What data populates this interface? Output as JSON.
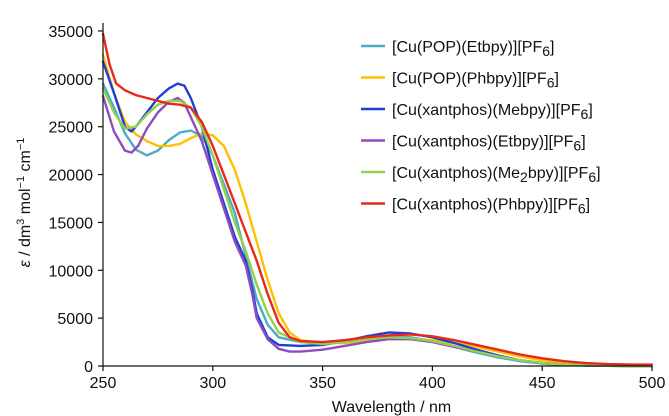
{
  "chart_data": {
    "type": "line",
    "xlabel": "Wavelength / nm",
    "ylabel_parts": [
      "ε",
      " / dm",
      "3",
      " mol",
      "−1",
      " cm",
      "−1"
    ],
    "xlim": [
      250,
      500
    ],
    "ylim": [
      0,
      35000
    ],
    "x_ticks": [
      250,
      300,
      350,
      400,
      450,
      500
    ],
    "y_ticks": [
      0,
      5000,
      10000,
      15000,
      20000,
      25000,
      30000,
      35000
    ],
    "grid": false,
    "legend_position": "top-right",
    "series": [
      {
        "name": "[Cu(POP)(Etbpy)][PF6]",
        "label_parts": [
          "[Cu(POP)(Etbpy)][PF",
          "6",
          "]"
        ],
        "color": "#4bacc6",
        "points": [
          [
            250,
            29500
          ],
          [
            255,
            27000
          ],
          [
            260,
            24300
          ],
          [
            265,
            22600
          ],
          [
            270,
            22000
          ],
          [
            275,
            22500
          ],
          [
            280,
            23600
          ],
          [
            285,
            24400
          ],
          [
            290,
            24600
          ],
          [
            295,
            24000
          ],
          [
            300,
            22000
          ],
          [
            305,
            19000
          ],
          [
            310,
            16000
          ],
          [
            315,
            11500
          ],
          [
            320,
            7000
          ],
          [
            325,
            4300
          ],
          [
            330,
            3000
          ],
          [
            340,
            2500
          ],
          [
            350,
            2400
          ],
          [
            360,
            2700
          ],
          [
            370,
            3000
          ],
          [
            380,
            3200
          ],
          [
            390,
            3000
          ],
          [
            400,
            2600
          ],
          [
            410,
            2000
          ],
          [
            420,
            1400
          ],
          [
            430,
            900
          ],
          [
            440,
            500
          ],
          [
            450,
            250
          ],
          [
            460,
            100
          ],
          [
            470,
            40
          ],
          [
            480,
            20
          ],
          [
            490,
            10
          ],
          [
            500,
            0
          ]
        ]
      },
      {
        "name": "[Cu(POP)(Phbpy)][PF6]",
        "label_parts": [
          "[Cu(POP)(Phbpy)][PF",
          "6",
          "]"
        ],
        "color": "#ffc000",
        "points": [
          [
            250,
            32500
          ],
          [
            255,
            28500
          ],
          [
            260,
            25500
          ],
          [
            265,
            24200
          ],
          [
            270,
            23500
          ],
          [
            275,
            23000
          ],
          [
            280,
            23000
          ],
          [
            285,
            23200
          ],
          [
            290,
            23800
          ],
          [
            295,
            24300
          ],
          [
            300,
            24100
          ],
          [
            305,
            23000
          ],
          [
            310,
            20500
          ],
          [
            315,
            17000
          ],
          [
            320,
            13000
          ],
          [
            325,
            9000
          ],
          [
            330,
            5500
          ],
          [
            335,
            3500
          ],
          [
            340,
            2700
          ],
          [
            350,
            2400
          ],
          [
            360,
            2400
          ],
          [
            370,
            2600
          ],
          [
            380,
            2800
          ],
          [
            390,
            2800
          ],
          [
            400,
            2700
          ],
          [
            410,
            2400
          ],
          [
            420,
            2000
          ],
          [
            430,
            1500
          ],
          [
            440,
            1000
          ],
          [
            450,
            600
          ],
          [
            460,
            300
          ],
          [
            470,
            150
          ],
          [
            480,
            80
          ],
          [
            490,
            50
          ],
          [
            500,
            0
          ]
        ]
      },
      {
        "name": "[Cu(xantphos)(Mebpy)][PF6]",
        "label_parts": [
          "[Cu(xantphos)(Mebpy)][PF",
          "6",
          "]"
        ],
        "color": "#1f3ed6",
        "points": [
          [
            250,
            31800
          ],
          [
            255,
            28500
          ],
          [
            260,
            25000
          ],
          [
            263,
            24500
          ],
          [
            265,
            25000
          ],
          [
            270,
            26500
          ],
          [
            275,
            28000
          ],
          [
            280,
            29000
          ],
          [
            284,
            29500
          ],
          [
            287,
            29300
          ],
          [
            290,
            28000
          ],
          [
            295,
            25000
          ],
          [
            300,
            20500
          ],
          [
            305,
            17000
          ],
          [
            310,
            13500
          ],
          [
            315,
            11000
          ],
          [
            318,
            8000
          ],
          [
            320,
            5500
          ],
          [
            325,
            3000
          ],
          [
            330,
            2200
          ],
          [
            340,
            2100
          ],
          [
            350,
            2200
          ],
          [
            360,
            2600
          ],
          [
            370,
            3100
          ],
          [
            380,
            3500
          ],
          [
            390,
            3400
          ],
          [
            400,
            3000
          ],
          [
            410,
            2400
          ],
          [
            420,
            1700
          ],
          [
            430,
            1100
          ],
          [
            440,
            600
          ],
          [
            450,
            300
          ],
          [
            460,
            150
          ],
          [
            470,
            60
          ],
          [
            480,
            20
          ],
          [
            490,
            0
          ],
          [
            500,
            0
          ]
        ]
      },
      {
        "name": "[Cu(xantphos)(Etbpy)][PF6]",
        "label_parts": [
          "[Cu(xantphos)(Etbpy)][PF",
          "6",
          "]"
        ],
        "color": "#8e4dbf",
        "points": [
          [
            250,
            28200
          ],
          [
            255,
            24500
          ],
          [
            260,
            22500
          ],
          [
            263,
            22300
          ],
          [
            266,
            23000
          ],
          [
            270,
            24800
          ],
          [
            275,
            26500
          ],
          [
            280,
            27600
          ],
          [
            284,
            28000
          ],
          [
            287,
            27500
          ],
          [
            290,
            26000
          ],
          [
            295,
            23500
          ],
          [
            300,
            20000
          ],
          [
            305,
            16500
          ],
          [
            310,
            13000
          ],
          [
            315,
            10500
          ],
          [
            318,
            7500
          ],
          [
            320,
            5000
          ],
          [
            325,
            2800
          ],
          [
            330,
            1800
          ],
          [
            335,
            1500
          ],
          [
            340,
            1500
          ],
          [
            350,
            1700
          ],
          [
            360,
            2100
          ],
          [
            370,
            2500
          ],
          [
            380,
            2800
          ],
          [
            390,
            2800
          ],
          [
            400,
            2500
          ],
          [
            410,
            2000
          ],
          [
            420,
            1500
          ],
          [
            430,
            1000
          ],
          [
            440,
            600
          ],
          [
            450,
            300
          ],
          [
            460,
            150
          ],
          [
            470,
            60
          ],
          [
            480,
            20
          ],
          [
            490,
            0
          ],
          [
            500,
            0
          ]
        ]
      },
      {
        "name": "[Cu(xantphos)(Me2bpy)][PF6]",
        "label_parts": [
          "[Cu(xantphos)(Me",
          "2",
          "bpy)][PF",
          "6",
          "]"
        ],
        "color": "#92d050",
        "points": [
          [
            250,
            29000
          ],
          [
            255,
            26500
          ],
          [
            260,
            24800
          ],
          [
            265,
            25000
          ],
          [
            270,
            26300
          ],
          [
            275,
            27300
          ],
          [
            280,
            27700
          ],
          [
            285,
            27700
          ],
          [
            290,
            27000
          ],
          [
            295,
            25000
          ],
          [
            300,
            22000
          ],
          [
            305,
            18500
          ],
          [
            310,
            15000
          ],
          [
            315,
            12000
          ],
          [
            320,
            8500
          ],
          [
            325,
            5500
          ],
          [
            330,
            3500
          ],
          [
            340,
            2500
          ],
          [
            350,
            2300
          ],
          [
            360,
            2500
          ],
          [
            370,
            2800
          ],
          [
            380,
            3000
          ],
          [
            390,
            2900
          ],
          [
            400,
            2600
          ],
          [
            410,
            2100
          ],
          [
            420,
            1500
          ],
          [
            430,
            1000
          ],
          [
            440,
            600
          ],
          [
            450,
            300
          ],
          [
            460,
            150
          ],
          [
            470,
            60
          ],
          [
            480,
            20
          ],
          [
            490,
            0
          ],
          [
            500,
            0
          ]
        ]
      },
      {
        "name": "[Cu(xantphos)(Phbpy)][PF6]",
        "label_parts": [
          "[Cu(xantphos)(Phbpy)][PF",
          "6",
          "]"
        ],
        "color": "#e8281b",
        "points": [
          [
            250,
            34700
          ],
          [
            253,
            31500
          ],
          [
            256,
            29500
          ],
          [
            260,
            28800
          ],
          [
            265,
            28300
          ],
          [
            270,
            28000
          ],
          [
            275,
            27700
          ],
          [
            280,
            27400
          ],
          [
            285,
            27300
          ],
          [
            290,
            27000
          ],
          [
            295,
            25500
          ],
          [
            300,
            23000
          ],
          [
            305,
            20000
          ],
          [
            310,
            17000
          ],
          [
            315,
            14000
          ],
          [
            320,
            11000
          ],
          [
            325,
            7500
          ],
          [
            330,
            4500
          ],
          [
            335,
            3000
          ],
          [
            340,
            2600
          ],
          [
            350,
            2500
          ],
          [
            360,
            2700
          ],
          [
            370,
            3000
          ],
          [
            380,
            3200
          ],
          [
            390,
            3300
          ],
          [
            400,
            3100
          ],
          [
            410,
            2700
          ],
          [
            420,
            2200
          ],
          [
            430,
            1700
          ],
          [
            440,
            1200
          ],
          [
            450,
            800
          ],
          [
            460,
            500
          ],
          [
            470,
            300
          ],
          [
            480,
            200
          ],
          [
            490,
            150
          ],
          [
            500,
            150
          ]
        ]
      }
    ]
  }
}
